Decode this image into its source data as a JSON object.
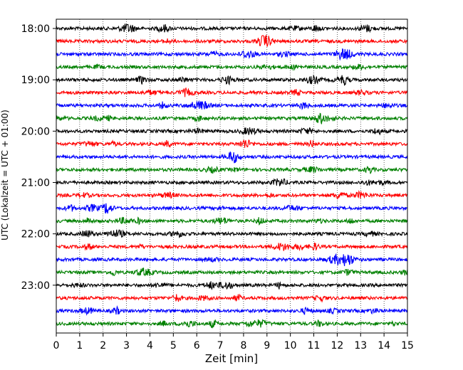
{
  "chart_data": {
    "type": "line",
    "title": "",
    "xlabel": "Zeit  [min]",
    "ylabel": "UTC (Lokalzeit = UTC + 01:00)",
    "xlim": [
      0,
      15
    ],
    "x_ticks": [
      0,
      1,
      2,
      3,
      4,
      5,
      6,
      7,
      8,
      9,
      10,
      11,
      12,
      13,
      14,
      15
    ],
    "x_tick_labels": [
      "0",
      "1",
      "2",
      "3",
      "4",
      "5",
      "6",
      "7",
      "8",
      "9",
      "10",
      "11",
      "12",
      "13",
      "14",
      "15"
    ],
    "y_tick_labels": [
      "18:00",
      "19:00",
      "20:00",
      "21:00",
      "22:00",
      "23:00"
    ],
    "y_tick_traces": [
      0,
      4,
      8,
      12,
      16,
      20
    ],
    "grid": "vertical dotted at each minute",
    "trace_interval_min": 15,
    "trace_start_times": [
      "18:00",
      "18:15",
      "18:30",
      "18:45",
      "19:00",
      "19:15",
      "19:30",
      "19:45",
      "20:00",
      "20:15",
      "20:30",
      "20:45",
      "21:00",
      "21:15",
      "21:30",
      "21:45",
      "22:00",
      "22:15",
      "22:30",
      "22:45",
      "23:00",
      "23:15",
      "23:30",
      "23:45"
    ],
    "trace_colors": [
      "#000000",
      "#ff0000",
      "#0000ff",
      "#008000"
    ]
  }
}
